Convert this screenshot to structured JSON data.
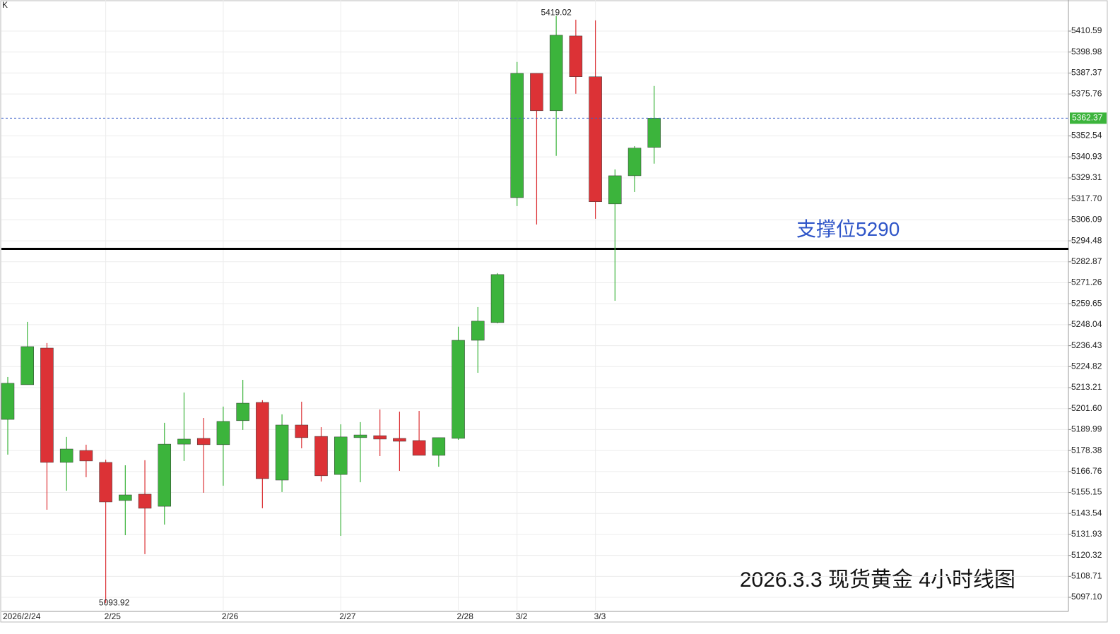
{
  "chart_data": {
    "type": "candlestick",
    "corner_label": "K",
    "caption": "2026.3.3 现货黄金 4小时线图",
    "categories": [
      "2026/2/24",
      null,
      null,
      null,
      null,
      "2/25",
      null,
      null,
      null,
      null,
      null,
      "2/26",
      null,
      null,
      null,
      null,
      null,
      "2/27",
      null,
      null,
      null,
      null,
      null,
      "2/28",
      null,
      null,
      "3/2",
      null,
      null,
      null,
      "3/3",
      null,
      null,
      null
    ],
    "open": [
      5195.6,
      5214.8,
      5235.1,
      5171.8,
      5178.4,
      5171.8,
      5150.7,
      5154.2,
      5147.5,
      5181.9,
      5185.1,
      5181.6,
      5194.9,
      5205.0,
      5162.0,
      5192.5,
      5186.2,
      5165.1,
      5185.5,
      5186.6,
      5185.1,
      5183.9,
      5175.7,
      5185.1,
      5239.4,
      5249.2,
      5318.4,
      5387.2,
      5366.5,
      5407.9,
      5385.3,
      5314.9,
      5330.5,
      5346.2
    ],
    "high": [
      5219.1,
      5249.6,
      5237.9,
      5185.9,
      5181.6,
      5173.3,
      5170.2,
      5173.0,
      5193.7,
      5210.5,
      5196.4,
      5202.7,
      5217.5,
      5206.2,
      5198.4,
      5205.4,
      5191.3,
      5192.9,
      5194.1,
      5201.1,
      5199.9,
      5200.3,
      5185.5,
      5246.9,
      5257.8,
      5276.6,
      5393.5,
      5387.2,
      5419.02,
      5416.9,
      5416.5,
      5334.0,
      5346.9,
      5380.2
    ],
    "low": [
      5176.1,
      5214.8,
      5145.6,
      5156.1,
      5163.6,
      5093.92,
      5131.5,
      5121.0,
      5137.4,
      5172.6,
      5155.0,
      5158.9,
      5189.8,
      5146.4,
      5155.4,
      5179.6,
      5161.2,
      5131.1,
      5160.8,
      5175.3,
      5167.1,
      5175.7,
      5169.4,
      5184.3,
      5221.4,
      5248.8,
      5313.7,
      5303.5,
      5341.5,
      5375.9,
      5306.7,
      5261.3,
      5321.5,
      5337.2
    ],
    "close": [
      5215.6,
      5235.9,
      5171.8,
      5179.2,
      5172.6,
      5149.9,
      5153.8,
      5146.4,
      5181.9,
      5184.7,
      5181.6,
      5194.5,
      5204.6,
      5162.8,
      5192.5,
      5185.5,
      5164.4,
      5185.9,
      5187.0,
      5184.7,
      5183.5,
      5175.7,
      5185.5,
      5239.4,
      5250.0,
      5275.8,
      5387.2,
      5366.5,
      5408.3,
      5385.3,
      5316.1,
      5330.5,
      5345.8,
      5362.37
    ],
    "up_color": "#3cb43c",
    "down_color": "#dc3236",
    "ylim": [
      5089.3,
      5427.8
    ],
    "yticks": [
      {
        "value": 5097.1,
        "label": "5097.10"
      },
      5108.71,
      5120.32,
      5131.93,
      5143.54,
      5155.15,
      5166.76,
      5178.38,
      5189.99,
      {
        "value": 5201.6,
        "label": "5201.60"
      },
      5213.21,
      5224.82,
      5236.43,
      5248.04,
      5259.65,
      5271.26,
      5282.87,
      5294.48,
      5306.09,
      {
        "value": 5317.7,
        "label": "5317.70"
      },
      5329.31,
      5340.93,
      5352.54,
      5375.76,
      5387.37,
      5398.98,
      5410.59
    ],
    "grid": true,
    "support_level": 5290,
    "support_label": "支撑位5290"
  }
}
